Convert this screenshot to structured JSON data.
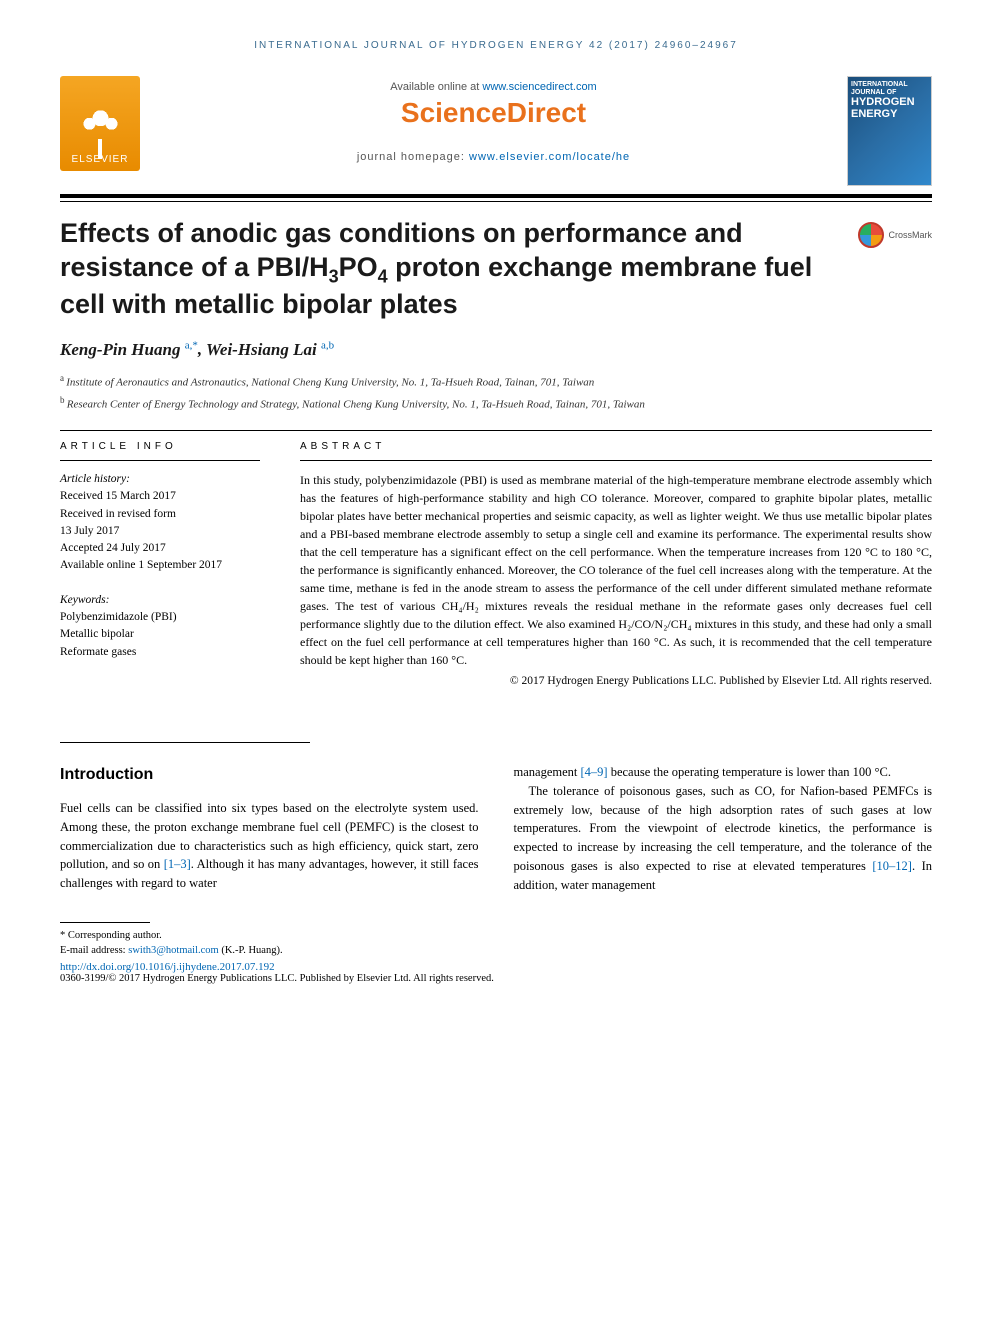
{
  "running_head": "INTERNATIONAL JOURNAL OF HYDROGEN ENERGY 42 (2017) 24960–24967",
  "masthead": {
    "publisher": "ELSEVIER",
    "available_prefix": "Available online at ",
    "available_link": "www.sciencedirect.com",
    "platform": "ScienceDirect",
    "homepage_prefix": "journal homepage: ",
    "homepage_link": "www.elsevier.com/locate/he",
    "cover_line1": "INTERNATIONAL JOURNAL OF",
    "cover_line2": "HYDROGEN",
    "cover_line3": "ENERGY"
  },
  "crossmark": "CrossMark",
  "title_parts": {
    "pre": "Effects of anodic gas conditions on performance and resistance of a PBI/H",
    "sub1": "3",
    "mid1": "PO",
    "sub2": "4",
    "post": " proton exchange membrane fuel cell with metallic bipolar plates"
  },
  "authors": [
    {
      "name": "Keng-Pin Huang",
      "marks": "a,*"
    },
    {
      "name": "Wei-Hsiang Lai",
      "marks": "a,b"
    }
  ],
  "affiliations": [
    {
      "mark": "a",
      "text": "Institute of Aeronautics and Astronautics, National Cheng Kung University, No. 1, Ta-Hsueh Road, Tainan, 701, Taiwan"
    },
    {
      "mark": "b",
      "text": "Research Center of Energy Technology and Strategy, National Cheng Kung University, No. 1, Ta-Hsueh Road, Tainan, 701, Taiwan"
    }
  ],
  "info_head": "ARTICLE INFO",
  "abstract_head": "ABSTRACT",
  "history_label": "Article history:",
  "history": [
    "Received 15 March 2017",
    "Received in revised form",
    "13 July 2017",
    "Accepted 24 July 2017",
    "Available online 1 September 2017"
  ],
  "keywords_label": "Keywords:",
  "keywords": [
    "Polybenzimidazole (PBI)",
    "Metallic bipolar",
    "Reformate gases"
  ],
  "abstract": "In this study, polybenzimidazole (PBI) is used as membrane material of the high-temperature membrane electrode assembly which has the features of high-performance stability and high CO tolerance. Moreover, compared to graphite bipolar plates, metallic bipolar plates have better mechanical properties and seismic capacity, as well as lighter weight. We thus use metallic bipolar plates and a PBI-based membrane electrode assembly to setup a single cell and examine its performance. The experimental results show that the cell temperature has a significant effect on the cell performance. When the temperature increases from 120 °C to 180 °C, the performance is significantly enhanced. Moreover, the CO tolerance of the fuel cell increases along with the temperature. At the same time, methane is fed in the anode stream to assess the performance of the cell under different simulated methane reformate gases. The test of various CH₄/H₂ mixtures reveals the residual methane in the reformate gases only decreases fuel cell performance slightly due to the dilution effect. We also examined H₂/CO/N₂/CH₄ mixtures in this study, and these had only a small effect on the fuel cell performance at cell temperatures higher than 160 °C. As such, it is recommended that the cell temperature should be kept higher than 160 °C.",
  "abs_copyright": "© 2017 Hydrogen Energy Publications LLC. Published by Elsevier Ltd. All rights reserved.",
  "intro_title": "Introduction",
  "intro_col1_pre": "Fuel cells can be classified into six types based on the electrolyte system used. Among these, the proton exchange membrane fuel cell (PEMFC) is the closest to commercialization due to characteristics such as high efficiency, quick start, zero pollution, and so on ",
  "intro_ref1": "[1–3]",
  "intro_col1_post": ". Although it has many advantages, however, it still faces challenges with regard to water",
  "intro_col2_p1_pre": "management ",
  "intro_ref2": "[4–9]",
  "intro_col2_p1_post": " because the operating temperature is lower than 100 °C.",
  "intro_col2_p2_pre": "The tolerance of poisonous gases, such as CO, for Nafion-based PEMFCs is extremely low, because of the high adsorption rates of such gases at low temperatures. From the viewpoint of electrode kinetics, the performance is expected to increase by increasing the cell temperature, and the tolerance of the poisonous gases is also expected to rise at elevated temperatures ",
  "intro_ref3": "[10–12]",
  "intro_col2_p2_post": ". In addition, water management",
  "footnote": {
    "corr": "* Corresponding author.",
    "email_label": "E-mail address: ",
    "email": "swith3@hotmail.com",
    "email_suffix": " (K.-P. Huang).",
    "doi": "http://dx.doi.org/10.1016/j.ijhydene.2017.07.192",
    "issn_copy": "0360-3199/© 2017 Hydrogen Energy Publications LLC. Published by Elsevier Ltd. All rights reserved."
  },
  "colors": {
    "link": "#0066b3",
    "orange": "#e9711c",
    "elsevier": "#e88b00",
    "cover": "#1a4d7a"
  }
}
